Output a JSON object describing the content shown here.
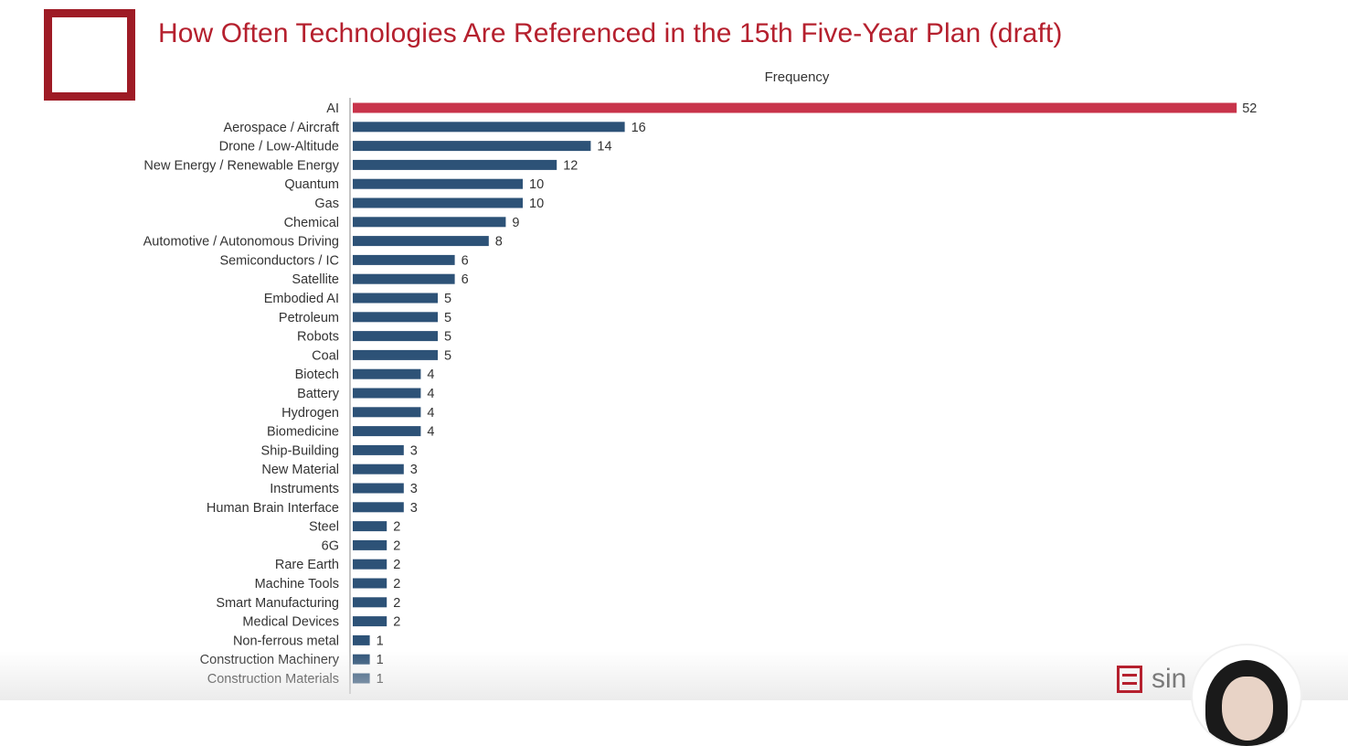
{
  "header": {
    "title": "How Often Technologies Are Referenced in the 15th Five-Year Plan (draft)"
  },
  "brand": {
    "text": "sin",
    "icon": "stacked-lines-logo-icon"
  },
  "colors": {
    "highlight": "#c8334a",
    "bar": "#2d5277",
    "title": "#b5202e"
  },
  "chart_data": {
    "type": "bar",
    "orientation": "horizontal",
    "title": "How Often Technologies Are Referenced in the 15th Five-Year Plan (draft)",
    "xlabel": "Frequency",
    "ylabel": "",
    "categories": [
      "AI",
      "Aerospace / Aircraft",
      "Drone / Low-Altitude",
      "New Energy / Renewable Energy",
      "Quantum",
      "Gas",
      "Chemical",
      "Automotive / Autonomous Driving",
      "Semiconductors / IC",
      "Satellite",
      "Embodied AI",
      "Petroleum",
      "Robots",
      "Coal",
      "Biotech",
      "Battery",
      "Hydrogen",
      "Biomedicine",
      "Ship-Building",
      "New Material",
      "Instruments",
      "Human Brain Interface",
      "Steel",
      "6G",
      "Rare Earth",
      "Machine Tools",
      "Smart Manufacturing",
      "Medical Devices",
      "Non-ferrous metal",
      "Construction Machinery",
      "Construction Materials"
    ],
    "values": [
      52,
      16,
      14,
      12,
      10,
      10,
      9,
      8,
      6,
      6,
      5,
      5,
      5,
      5,
      4,
      4,
      4,
      4,
      3,
      3,
      3,
      3,
      2,
      2,
      2,
      2,
      2,
      2,
      1,
      1,
      1
    ],
    "highlight_category": "AI",
    "data_labels": true,
    "grid": false,
    "legend": "none"
  }
}
